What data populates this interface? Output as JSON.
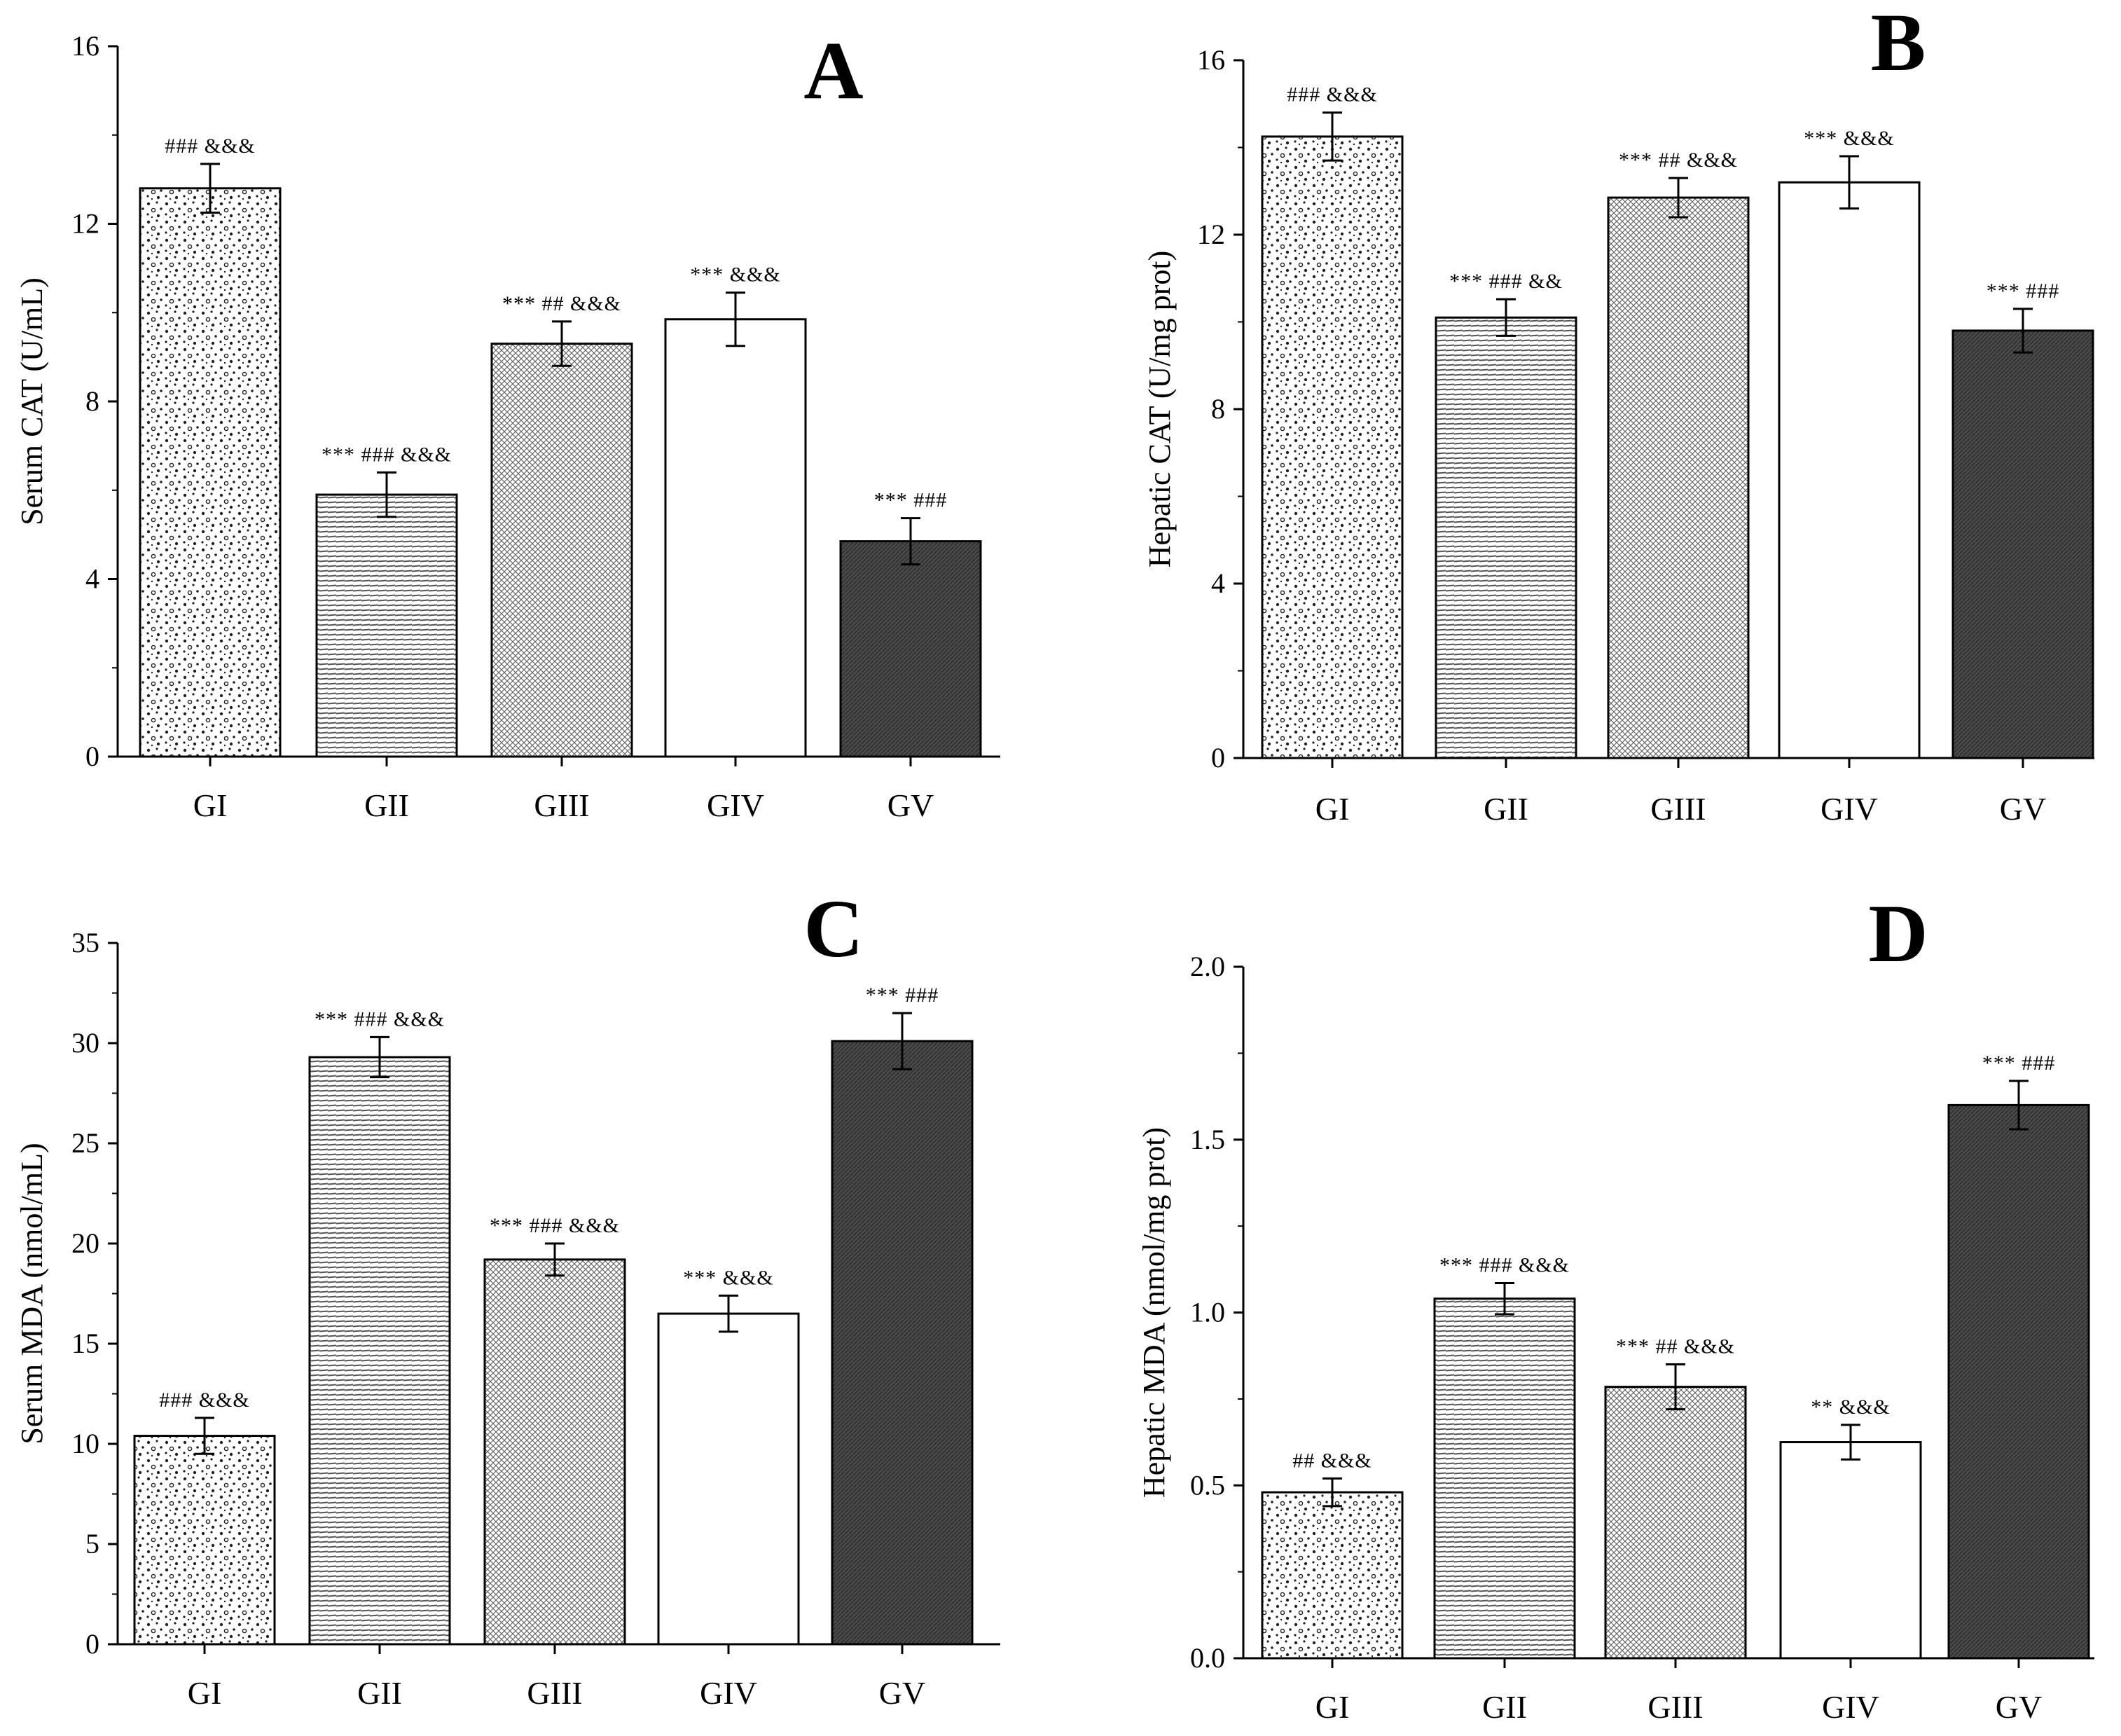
{
  "colors": {
    "axis": "#000000",
    "bar_outline": "#000000",
    "GV_fill": "#4a4a4a",
    "GIV_fill": "#ffffff"
  },
  "pattern_names": {
    "GI": "sparse-dots",
    "GII": "horizontal-hatch",
    "GIII": "fine-crosshatch",
    "GIV": "empty",
    "GV": "dark-diagonal"
  },
  "chart_data": [
    {
      "panel": "A",
      "type": "bar",
      "categories": [
        "GI",
        "GII",
        "GIII",
        "GIV",
        "GV"
      ],
      "values": [
        12.8,
        5.9,
        9.3,
        9.85,
        4.85
      ],
      "errors": [
        0.55,
        0.5,
        0.5,
        0.6,
        0.52
      ],
      "significance": [
        "### &&&",
        "*** ### &&&",
        "*** ## &&&",
        "*** &&&",
        "*** ###"
      ],
      "xlabel": "",
      "ylabel": "Serum CAT (U/mL)",
      "ylim": [
        0,
        16
      ],
      "yticks": [
        "0",
        "4",
        "8",
        "12",
        "16"
      ],
      "grid": false
    },
    {
      "panel": "B",
      "type": "bar",
      "categories": [
        "GI",
        "GII",
        "GIII",
        "GIV",
        "GV"
      ],
      "values": [
        14.25,
        10.1,
        12.85,
        13.2,
        9.8
      ],
      "errors": [
        0.55,
        0.42,
        0.45,
        0.6,
        0.5
      ],
      "significance": [
        "### &&&",
        "*** ### &&",
        "*** ## &&&",
        "*** &&&",
        "*** ###"
      ],
      "xlabel": "",
      "ylabel": "Hepatic CAT (U/mg prot)",
      "ylim": [
        0,
        16
      ],
      "yticks": [
        "0",
        "4",
        "8",
        "12",
        "16"
      ],
      "grid": false
    },
    {
      "panel": "C",
      "type": "bar",
      "categories": [
        "GI",
        "GII",
        "GIII",
        "GIV",
        "GV"
      ],
      "values": [
        10.4,
        29.3,
        19.2,
        16.5,
        30.1
      ],
      "errors": [
        0.9,
        1.0,
        0.8,
        0.9,
        1.4
      ],
      "significance": [
        "### &&&",
        "*** ### &&&",
        "*** ### &&&",
        "*** &&&",
        "*** ###"
      ],
      "xlabel": "",
      "ylabel": "Serum MDA (nmol/mL)",
      "ylim": [
        0,
        35
      ],
      "yticks": [
        "0",
        "5",
        "10",
        "15",
        "20",
        "25",
        "30",
        "35"
      ],
      "grid": false
    },
    {
      "panel": "D",
      "type": "bar",
      "categories": [
        "GI",
        "GII",
        "GIII",
        "GIV",
        "GV"
      ],
      "values": [
        0.48,
        1.04,
        0.785,
        0.625,
        1.6
      ],
      "errors": [
        0.04,
        0.045,
        0.065,
        0.05,
        0.07
      ],
      "significance": [
        "## &&&",
        "*** ### &&&",
        "*** ## &&&",
        "** &&&",
        "*** ###"
      ],
      "xlabel": "",
      "ylabel": "Hepatic MDA (nmol/mg prot)",
      "ylim": [
        0,
        2.0
      ],
      "yticks": [
        "0.0",
        "0.5",
        "1.0",
        "1.5",
        "2.0"
      ],
      "grid": false
    }
  ]
}
